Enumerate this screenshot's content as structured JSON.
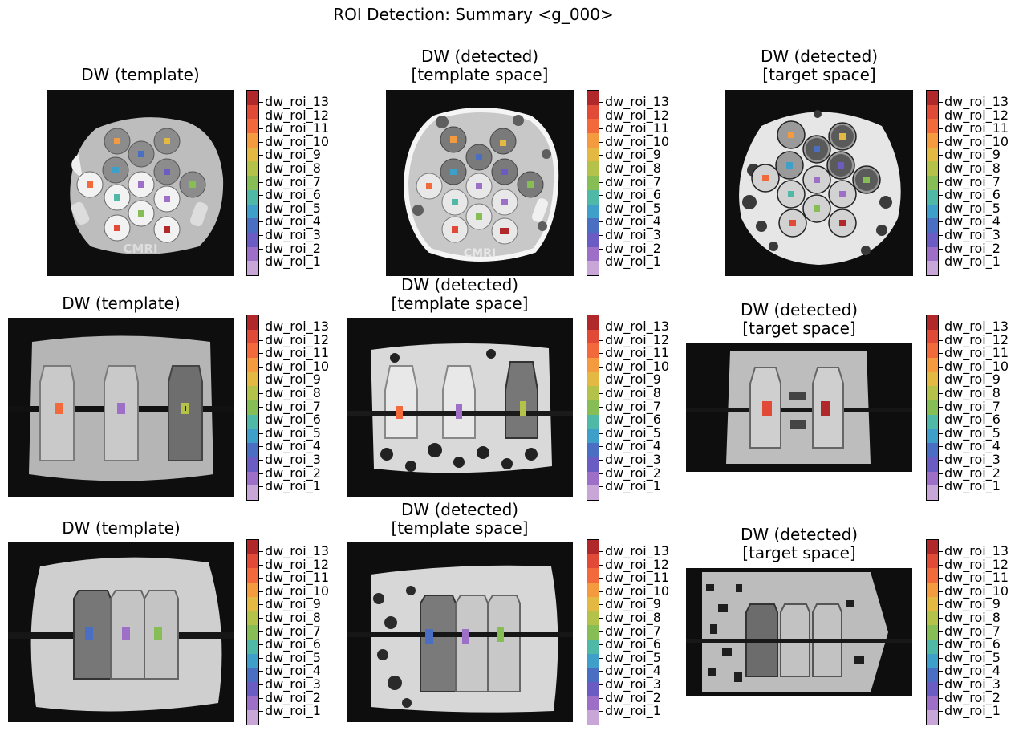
{
  "figure": {
    "suptitle": "ROI Detection: Summary <g_000>"
  },
  "rows": [
    {
      "panels": [
        {
          "title": "DW (template)"
        },
        {
          "title": "DW (detected)\n[template space]"
        },
        {
          "title": "DW (detected)\n[target space]"
        }
      ]
    },
    {
      "panels": [
        {
          "title": "DW (template)"
        },
        {
          "title": "DW (detected)\n[template space]"
        },
        {
          "title": "DW (detected)\n[target space]"
        }
      ]
    },
    {
      "panels": [
        {
          "title": "DW (template)"
        },
        {
          "title": "DW (detected)\n[template space]"
        },
        {
          "title": "DW (detected)\n[target space]"
        }
      ]
    }
  ],
  "colorbar": {
    "labels": [
      "dw_roi_13",
      "dw_roi_12",
      "dw_roi_11",
      "dw_roi_10",
      "dw_roi_9",
      "dw_roi_8",
      "dw_roi_7",
      "dw_roi_6",
      "dw_roi_5",
      "dw_roi_4",
      "dw_roi_3",
      "dw_roi_2",
      "dw_roi_1"
    ],
    "colors": [
      "#b0282a",
      "#e04a36",
      "#f26a3c",
      "#f39b3e",
      "#e3b944",
      "#b5c24a",
      "#86bd55",
      "#4fb8a6",
      "#3e9fc9",
      "#4a6fc2",
      "#6a5cc3",
      "#9d6fc6",
      "#c8a6d8"
    ]
  },
  "image_text": {
    "phantom_logo": "CMRI"
  }
}
